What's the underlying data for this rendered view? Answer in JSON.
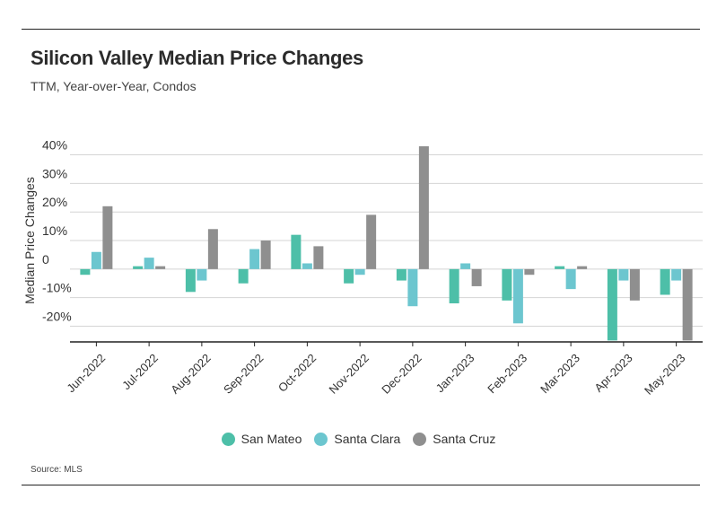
{
  "header": {
    "title": "Silicon Valley Median Price Changes",
    "subtitle": "TTM, Year-over-Year, Condos"
  },
  "source": "Source: MLS",
  "colors": {
    "San Mateo": "#4dbfa8",
    "Santa Clara": "#6cc6cf",
    "Santa Cruz": "#8f8f8f",
    "grid": "#d4d4d4",
    "axis": "#222222"
  },
  "chart_data": {
    "type": "bar",
    "title": "Silicon Valley Median Price Changes",
    "subtitle": "TTM, Year-over-Year, Condos",
    "xlabel": "",
    "ylabel": "Median Price Changes",
    "ylim": [
      -25,
      40
    ],
    "yticks": [
      40,
      30,
      20,
      10,
      0,
      -10,
      -20
    ],
    "ytick_labels": [
      "40%",
      "30%",
      "20%",
      "10%",
      "0",
      "-10%",
      "-20%"
    ],
    "grid": true,
    "legend_position": "bottom",
    "categories": [
      "Jun-2022",
      "Jul-2022",
      "Aug-2022",
      "Sep-2022",
      "Oct-2022",
      "Nov-2022",
      "Dec-2022",
      "Jan-2023",
      "Feb-2023",
      "Mar-2023",
      "Apr-2023",
      "May-2023"
    ],
    "series": [
      {
        "name": "San Mateo",
        "values": [
          -2,
          1,
          -8,
          -5,
          12,
          -5,
          -4,
          -12,
          -11,
          1,
          -25,
          -9
        ]
      },
      {
        "name": "Santa Clara",
        "values": [
          6,
          4,
          -4,
          7,
          2,
          -2,
          -13,
          2,
          -19,
          -7,
          -4,
          -4
        ]
      },
      {
        "name": "Santa Cruz",
        "values": [
          22,
          1,
          14,
          10,
          8,
          19,
          43,
          -6,
          -2,
          1,
          -11,
          -25
        ]
      }
    ]
  }
}
